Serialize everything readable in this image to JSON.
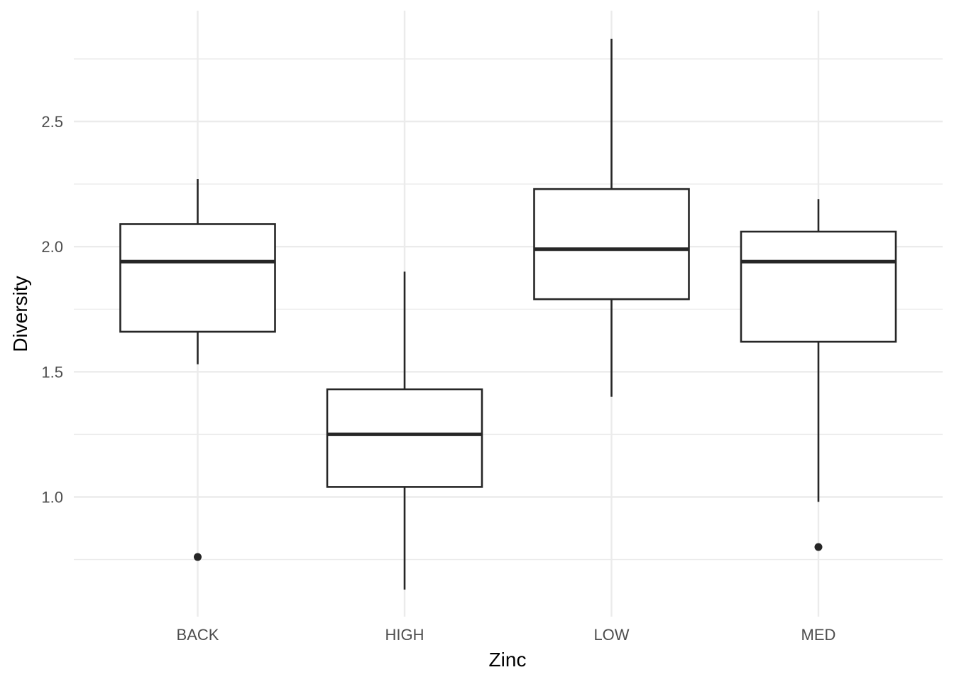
{
  "chart_data": {
    "type": "box",
    "title": "",
    "xlabel": "Zinc",
    "ylabel": "Diversity",
    "ylim": [
      0.63,
      2.85
    ],
    "yticks": [
      1.0,
      1.5,
      2.0,
      2.5
    ],
    "ytick_labels": [
      "1.0",
      "1.5",
      "2.0",
      "2.5"
    ],
    "yminor": [
      0.75,
      1.25,
      1.75,
      2.25,
      2.75
    ],
    "grid": true,
    "legend": "none",
    "categories": [
      "BACK",
      "HIGH",
      "LOW",
      "MED"
    ],
    "boxes": [
      {
        "category": "BACK",
        "whisker_low": 1.53,
        "q1": 1.66,
        "median": 1.94,
        "q3": 2.09,
        "whisker_high": 2.27,
        "outliers": [
          0.76
        ]
      },
      {
        "category": "HIGH",
        "whisker_low": 0.63,
        "q1": 1.04,
        "median": 1.25,
        "q3": 1.43,
        "whisker_high": 1.9,
        "outliers": []
      },
      {
        "category": "LOW",
        "whisker_low": 1.4,
        "q1": 1.79,
        "median": 1.99,
        "q3": 2.23,
        "whisker_high": 2.83,
        "outliers": []
      },
      {
        "category": "MED",
        "whisker_low": 0.98,
        "q1": 1.62,
        "median": 1.94,
        "q3": 2.06,
        "whisker_high": 2.19,
        "outliers": [
          0.8
        ]
      }
    ],
    "colors": {
      "box_stroke": "#262626",
      "box_fill": "#ffffff",
      "grid": "#ebebeb",
      "tick_text": "#4d4d4d"
    }
  }
}
